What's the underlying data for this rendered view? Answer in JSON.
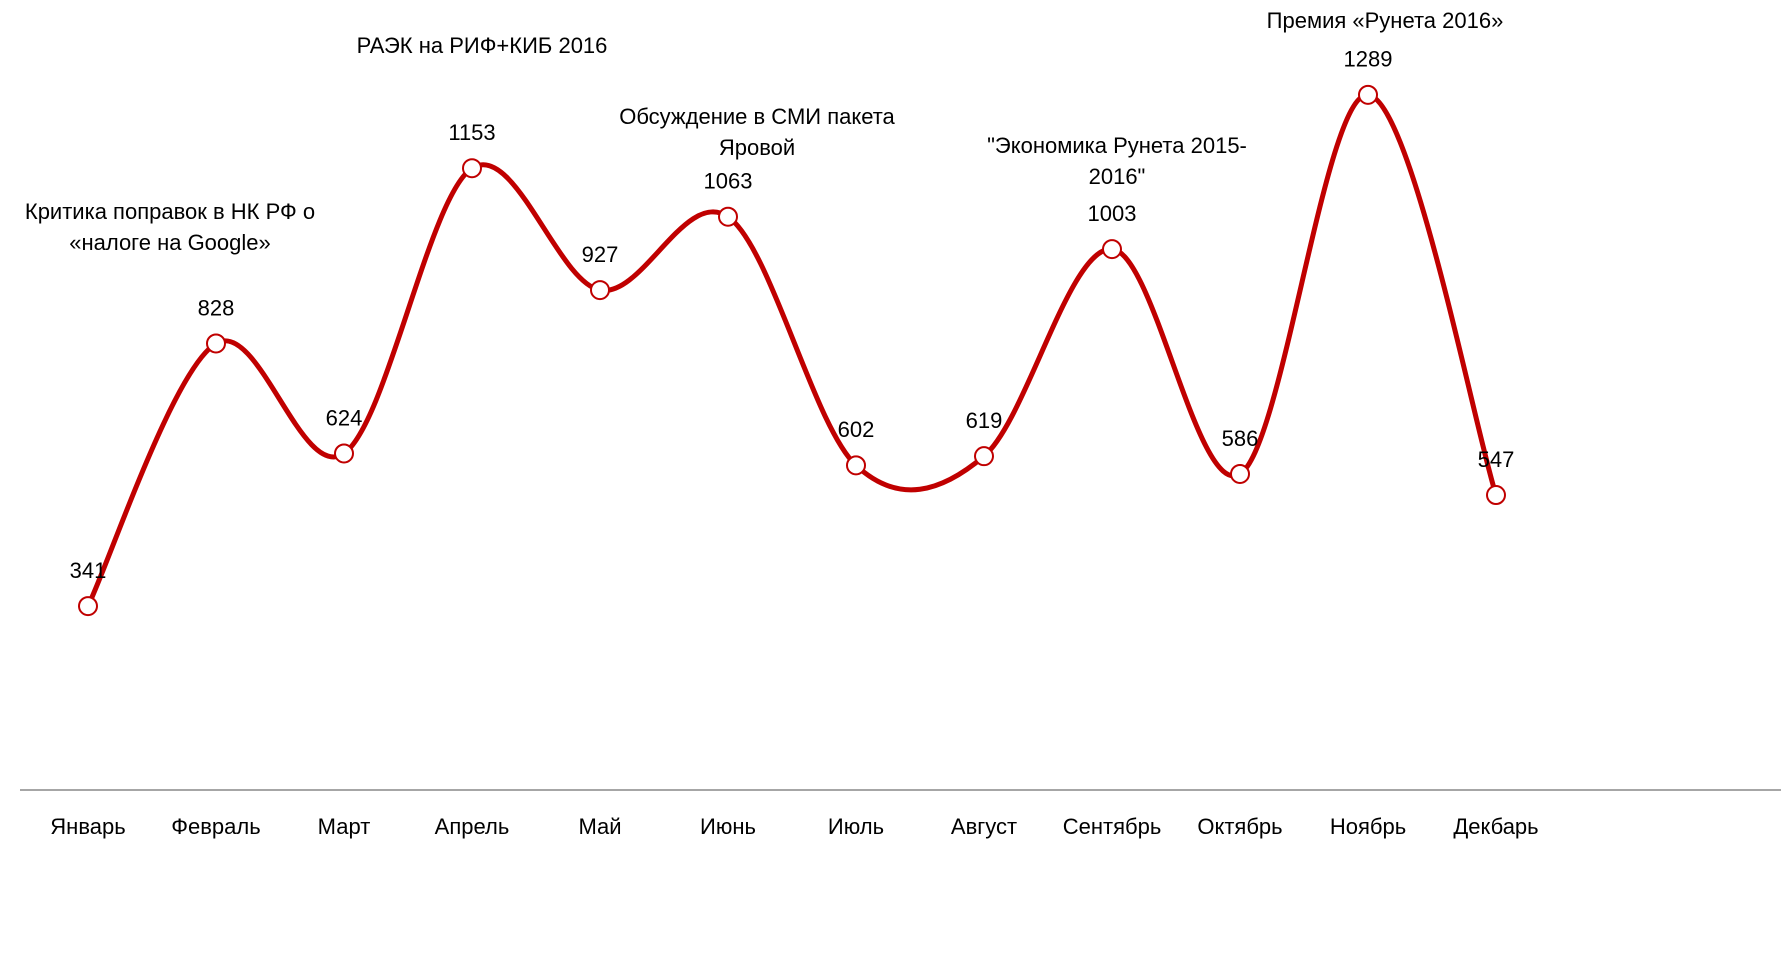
{
  "chart_data": {
    "type": "line",
    "categories": [
      "Январь",
      "Февраль",
      "Март",
      "Апрель",
      "Май",
      "Июнь",
      "Июль",
      "Август",
      "Сентябрь",
      "Октябрь",
      "Ноябрь",
      "Декбарь"
    ],
    "values": [
      341,
      828,
      624,
      1153,
      927,
      1063,
      602,
      619,
      1003,
      586,
      1289,
      547
    ],
    "color": "#c00000",
    "ylim": [
      0,
      1400
    ],
    "smooth": true,
    "annotations": [
      "Критика поправок в НК РФ  о\n«налоге на Google»",
      "РАЭК на РИФ+КИБ 2016",
      "Обсуждение в СМИ пакета\nЯровой",
      "\"Экономика Рунета 2015-\n2016\"",
      "Премия «Рунета 2016»"
    ]
  }
}
